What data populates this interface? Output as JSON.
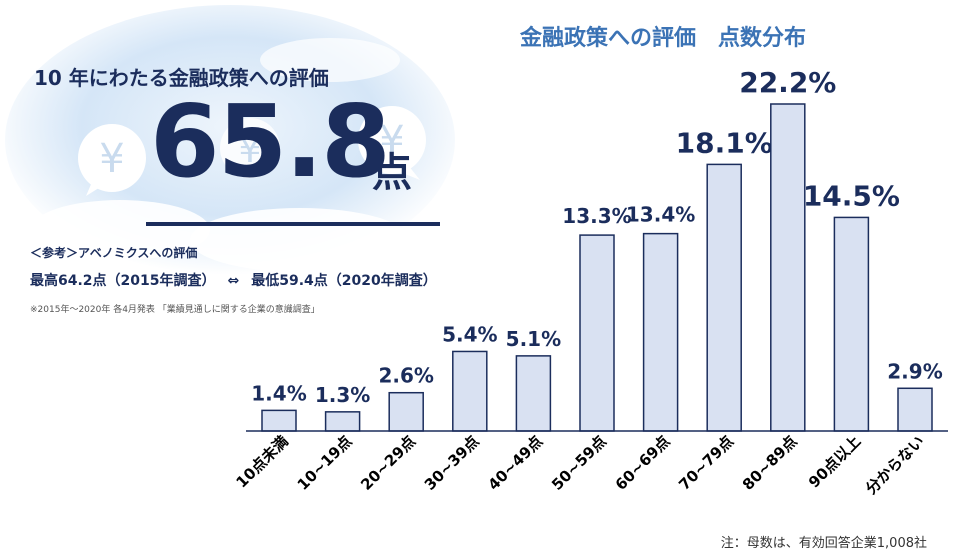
{
  "headline": "10 年にわたる金融政策への評価",
  "score": {
    "value": "65.8",
    "unit": "点"
  },
  "reference": {
    "heading": "＜参考＞アベノミクスへの評価",
    "max": "最高64.2点（2015年調査）",
    "separator": "⇔",
    "min": "最低59.4点（2020年調査）",
    "note": "※2015年～2020年 各4月発表 「業績見通しに関する企業の意識調査」"
  },
  "chart_data": {
    "type": "bar",
    "title": "金融政策への評価　点数分布",
    "categories": [
      "10点未満",
      "10~19点",
      "20~29点",
      "30~39点",
      "40~49点",
      "50~59点",
      "60~69点",
      "70~79点",
      "80~89点",
      "90点以上",
      "分からない"
    ],
    "values": [
      1.4,
      1.3,
      2.6,
      5.4,
      5.1,
      13.3,
      13.4,
      18.1,
      22.2,
      14.5,
      2.9
    ],
    "labels": [
      "1.4%",
      "1.3%",
      "2.6%",
      "5.4%",
      "5.1%",
      "13.3%",
      "13.4%",
      "18.1%",
      "22.2%",
      "14.5%",
      "2.9%"
    ],
    "unit": "%",
    "ylim": [
      0,
      22.2
    ],
    "grid": false,
    "legend": "none",
    "colors": {
      "bar_fill": "#d9e1f2",
      "bar_stroke": "#1b2d5c",
      "label": "#1b2d5c",
      "title": "#3b73b5"
    }
  },
  "footnote": "注：母数は、有効回答企業1,008社",
  "decor": {
    "icons": [
      "yen-bubble-icon",
      "yen-bubble-icon",
      "yen-bubble-icon"
    ],
    "icon_symbol": "¥"
  }
}
